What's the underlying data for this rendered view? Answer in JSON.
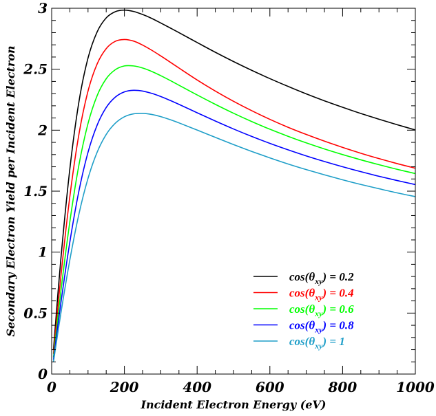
{
  "chart_data": {
    "type": "line",
    "xlabel": "Incident Electron Energy (eV)",
    "ylabel": "Secondary Electron Yield per Incident Electron",
    "xlim": [
      0,
      1000
    ],
    "ylim": [
      0,
      3
    ],
    "x_ticks": [
      0,
      200,
      400,
      600,
      800,
      1000
    ],
    "y_ticks": [
      0,
      0.5,
      1,
      1.5,
      2,
      2.5,
      3
    ],
    "x_tick_labels": [
      "0",
      "200",
      "400",
      "600",
      "800",
      "1000"
    ],
    "y_tick_labels": [
      "0",
      "0.5",
      "1",
      "1.5",
      "2",
      "2.5",
      "3"
    ],
    "grid": false,
    "legend_position": "bottom-right",
    "x": [
      5,
      25,
      50,
      75,
      100,
      125,
      150,
      175,
      200,
      225,
      250,
      275,
      300,
      325,
      350,
      400,
      450,
      500,
      550,
      600,
      650,
      700,
      750,
      800,
      850,
      900,
      950,
      1000
    ],
    "series": [
      {
        "legend_label": "cos(θxy) = 0.2",
        "color": "#000000",
        "values": [
          0.2,
          0.934,
          1.682,
          2.233,
          2.592,
          2.806,
          2.921,
          2.972,
          2.985,
          2.974,
          2.949,
          2.917,
          2.879,
          2.84,
          2.8,
          2.719,
          2.639,
          2.563,
          2.491,
          2.423,
          2.359,
          2.298,
          2.241,
          2.188,
          2.137,
          2.09,
          2.045,
          2.002
        ]
      },
      {
        "legend_label": "cos(θxy) = 0.4",
        "color": "#ff0000",
        "values": [
          0.165,
          0.791,
          1.456,
          1.967,
          2.321,
          2.543,
          2.669,
          2.729,
          2.744,
          2.731,
          2.698,
          2.656,
          2.609,
          2.56,
          2.51,
          2.412,
          2.321,
          2.237,
          2.16,
          2.089,
          2.024,
          1.965,
          1.91,
          1.859,
          1.811,
          1.767,
          1.726,
          1.688
        ]
      },
      {
        "legend_label": "cos(θxy) = 0.6",
        "color": "#00ff00",
        "values": [
          0.138,
          0.67,
          1.249,
          1.715,
          2.055,
          2.283,
          2.422,
          2.496,
          2.527,
          2.527,
          2.51,
          2.482,
          2.447,
          2.409,
          2.369,
          2.289,
          2.212,
          2.139,
          2.071,
          2.008,
          1.95,
          1.896,
          1.846,
          1.8,
          1.757,
          1.717,
          1.679,
          1.644
        ]
      },
      {
        "legend_label": "cos(θxy) = 0.8",
        "color": "#0000ff",
        "values": [
          0.118,
          0.576,
          1.083,
          1.502,
          1.819,
          2.041,
          2.186,
          2.271,
          2.314,
          2.327,
          2.321,
          2.302,
          2.276,
          2.245,
          2.212,
          2.143,
          2.075,
          2.01,
          1.949,
          1.892,
          1.839,
          1.789,
          1.743,
          1.7,
          1.66,
          1.622,
          1.587,
          1.554
        ]
      },
      {
        "legend_label": "cos(θxy) = 1",
        "color": "#1e9ec8",
        "values": [
          0.1,
          0.493,
          0.936,
          1.312,
          1.605,
          1.819,
          1.965,
          2.057,
          2.11,
          2.134,
          2.138,
          2.129,
          2.111,
          2.087,
          2.06,
          2.001,
          1.941,
          1.882,
          1.826,
          1.773,
          1.723,
          1.677,
          1.634,
          1.593,
          1.555,
          1.52,
          1.486,
          1.455
        ]
      }
    ]
  }
}
